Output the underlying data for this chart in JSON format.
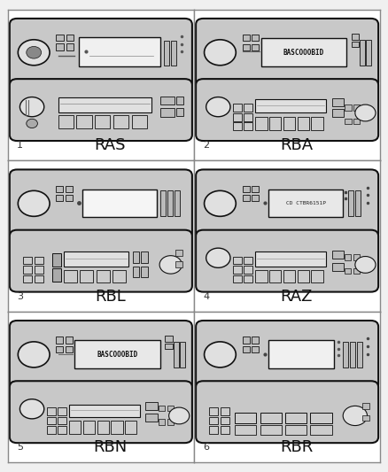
{
  "background_color": "#f0f0f0",
  "cell_bg": "#ffffff",
  "border_color": "#888888",
  "radio_bg": "#d8d8d8",
  "radio_border": "#111111",
  "radio_display_bg": "#e8e8e8",
  "radio_button_bg": "#cccccc",
  "radios": [
    {
      "number": "1",
      "label": "RAS",
      "row": 0,
      "col": 0
    },
    {
      "number": "2",
      "label": "RBA",
      "row": 0,
      "col": 1
    },
    {
      "number": "3",
      "label": "RBL",
      "row": 1,
      "col": 0
    },
    {
      "number": "4",
      "label": "RAZ",
      "row": 1,
      "col": 1
    },
    {
      "number": "5",
      "label": "RBN",
      "row": 2,
      "col": 0
    },
    {
      "number": "6",
      "label": "RBR",
      "row": 2,
      "col": 1
    }
  ],
  "label_fontsize": 13,
  "number_fontsize": 8
}
